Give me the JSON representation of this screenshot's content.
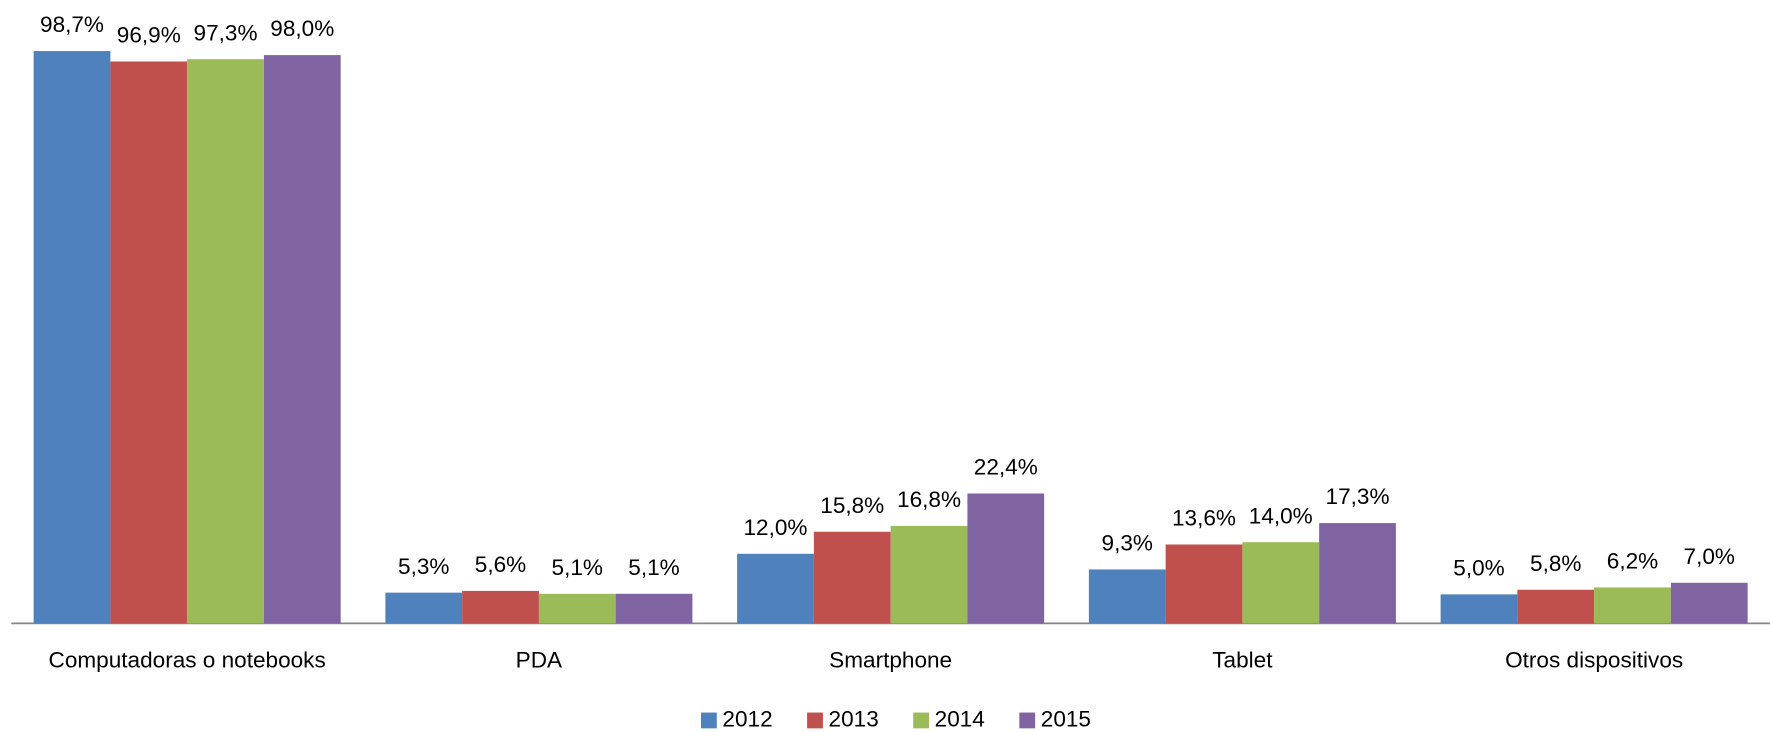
{
  "chart_data": {
    "type": "bar",
    "categories": [
      "Computadoras o notebooks",
      "PDA",
      "Smartphone",
      "Tablet",
      "Otros dispositivos"
    ],
    "series": [
      {
        "name": "2012",
        "color": "#4f81bd",
        "values": [
          98.7,
          5.3,
          12.0,
          9.3,
          5.0
        ],
        "value_labels": [
          "98,7%",
          "5,3%",
          "12,0%",
          "9,3%",
          "5,0%"
        ]
      },
      {
        "name": "2013",
        "color": "#c0504d",
        "values": [
          96.9,
          5.6,
          15.8,
          13.6,
          5.8
        ],
        "value_labels": [
          "96,9%",
          "5,6%",
          "15,8%",
          "13,6%",
          "5,8%"
        ]
      },
      {
        "name": "2014",
        "color": "#9bbb59",
        "values": [
          97.3,
          5.1,
          16.8,
          14.0,
          6.2
        ],
        "value_labels": [
          "97,3%",
          "5,1%",
          "16,8%",
          "14,0%",
          "6,2%"
        ]
      },
      {
        "name": "2015",
        "color": "#8064a2",
        "values": [
          98.0,
          5.1,
          22.4,
          17.3,
          7.0
        ],
        "value_labels": [
          "98,0%",
          "5,1%",
          "22,4%",
          "17,3%",
          "7,0%"
        ]
      }
    ],
    "legend": "bottom"
  }
}
